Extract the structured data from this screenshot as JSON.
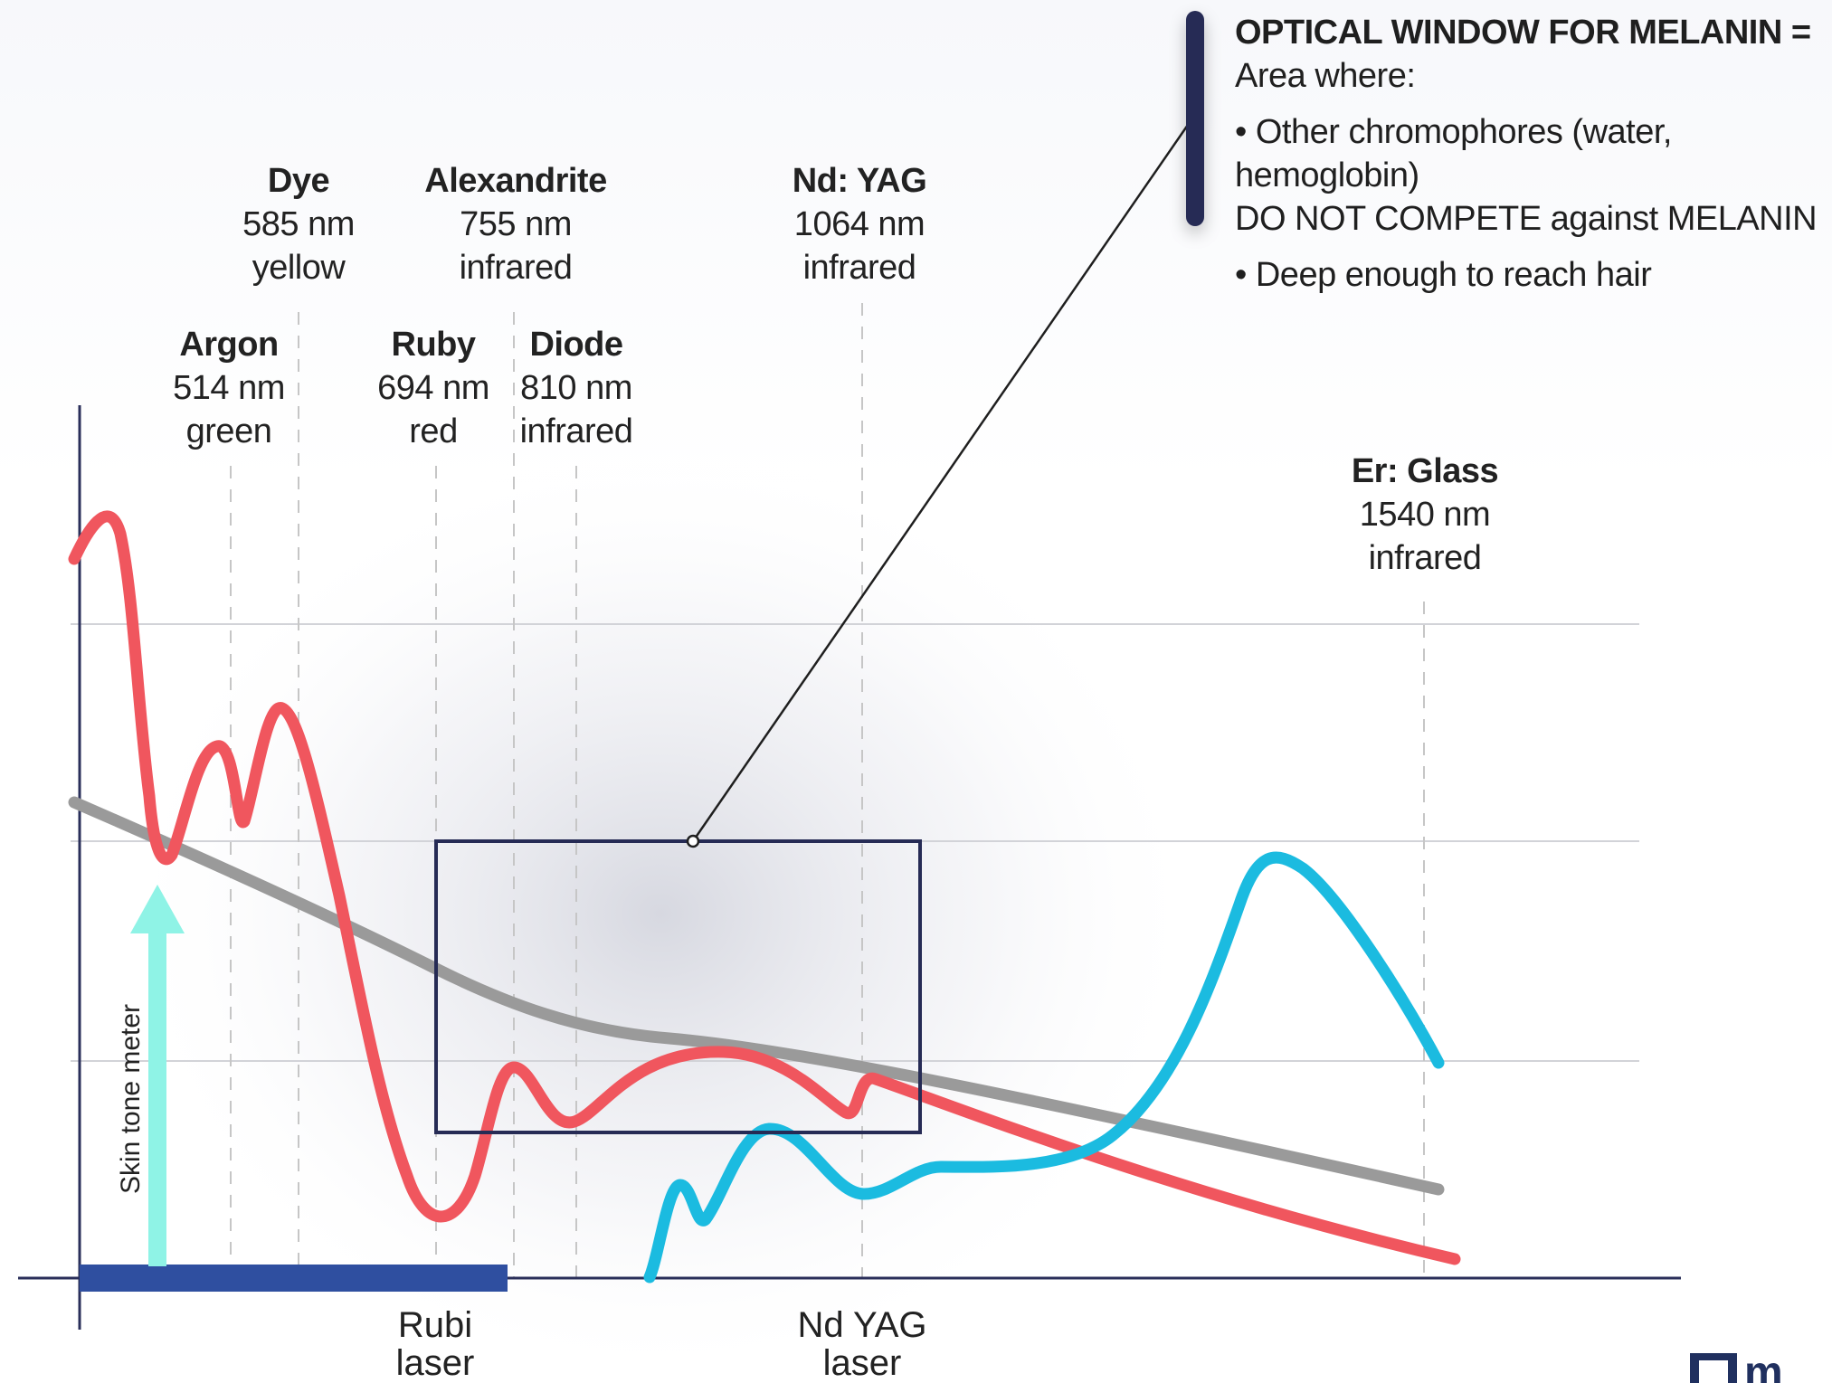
{
  "legend": {
    "heading_bold": "OPTICAL WINDOW FOR MELANIN =",
    "heading_rest": " Area where:",
    "bullet1_line1": "• Other chromophores (water, hemoglobin)",
    "bullet1_line2": "DO NOT COMPETE against MELANIN",
    "bullet2": "• Deep enough to reach hair",
    "bar_color": "#262b55"
  },
  "lasers": {
    "argon": {
      "name": "Argon",
      "wavelength": "514 nm",
      "band": "green"
    },
    "dye": {
      "name": "Dye",
      "wavelength": "585 nm",
      "band": "yellow"
    },
    "ruby": {
      "name": "Ruby",
      "wavelength": "694 nm",
      "band": "red"
    },
    "alexandrite": {
      "name": "Alexandrite",
      "wavelength": "755 nm",
      "band": "infrared"
    },
    "diode": {
      "name": "Diode",
      "wavelength": "810 nm",
      "band": "infrared"
    },
    "ndyag": {
      "name": "Nd: YAG",
      "wavelength": "1064 nm",
      "band": "infrared"
    },
    "erglass": {
      "name": "Er: Glass",
      "wavelength": "1540 nm",
      "band": "infrared"
    }
  },
  "bottom_labels": {
    "rubi": {
      "line1": "Rubi",
      "line2": "laser"
    },
    "ndyag": {
      "line1": "Nd YAG",
      "line2": "laser"
    }
  },
  "skin_tone_label": "Skin tone meter",
  "logo_text": "m",
  "colors": {
    "melanin_curve": "#f0565e",
    "water_curve": "#1bbbe0",
    "gray_curve": "#9a9a9a",
    "window_box": "#262b55",
    "arrow": "#8ff3e6",
    "axis": "#2a2f5a",
    "base_bar": "#2f4fa0"
  }
}
